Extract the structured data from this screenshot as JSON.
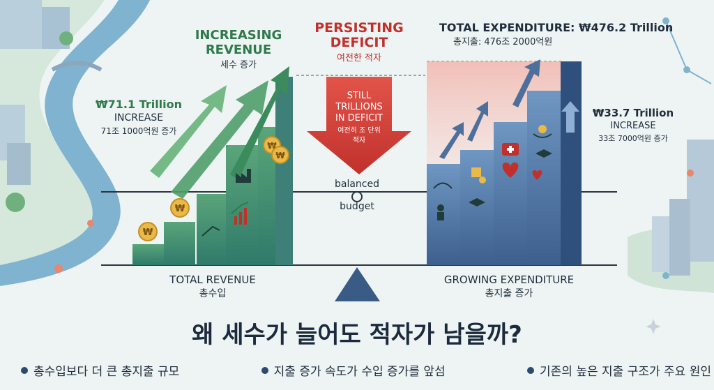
{
  "revenue": {
    "heading_line1": "INCREASING",
    "heading_line2": "REVENUE",
    "heading_ko": "세수 증가",
    "increase_amount": "₩71.1 Trillion",
    "increase_word": "INCREASE",
    "increase_ko": "71조 1000억원 증가",
    "total_label": "TOTAL REVENUE",
    "total_label_ko": "총수입"
  },
  "deficit": {
    "heading_line1": "PERSISTING",
    "heading_line2": "DEFICIT",
    "heading_ko": "여전한 적자",
    "arrow_line1": "STILL",
    "arrow_line2": "TRILLIONS",
    "arrow_line3": "IN DEFICIT",
    "arrow_ko_line1": "여전히 조 단위",
    "arrow_ko_line2": "적자"
  },
  "balance": {
    "label_top": "balanced",
    "label_bottom": "budget"
  },
  "expenditure": {
    "total_heading": "TOTAL EXPENDITURE: ₩476.2 Trillion",
    "total_heading_ko": "총지출: 476조 2000억원",
    "increase_amount": "₩33.7 Trillion",
    "increase_word": "INCREASE",
    "increase_ko": "33조 7000억원 증가",
    "growing_label": "GROWING EXPENDITURE",
    "growing_label_ko": "총지출 증가"
  },
  "question": "왜 세수가 늘어도 적자가 남을까?",
  "bullets": [
    "총수입보다 더 큰 총지출 규모",
    "지출 증가 속도가 수입 증가를 앞섬",
    "기존의 높은 지출 구조가 주요 원인"
  ],
  "colors": {
    "green": "#2f7a4a",
    "red": "#c0312c",
    "navy": "#2c4a6e",
    "river": "#7fb3cf"
  },
  "icons": [
    "won-coin-icon",
    "factory-icon",
    "chart-up-icon",
    "medical-kit-icon",
    "heart-pulse-icon",
    "graduation-cap-icon",
    "helping-hands-icon",
    "caregiver-icon",
    "construction-icon"
  ]
}
